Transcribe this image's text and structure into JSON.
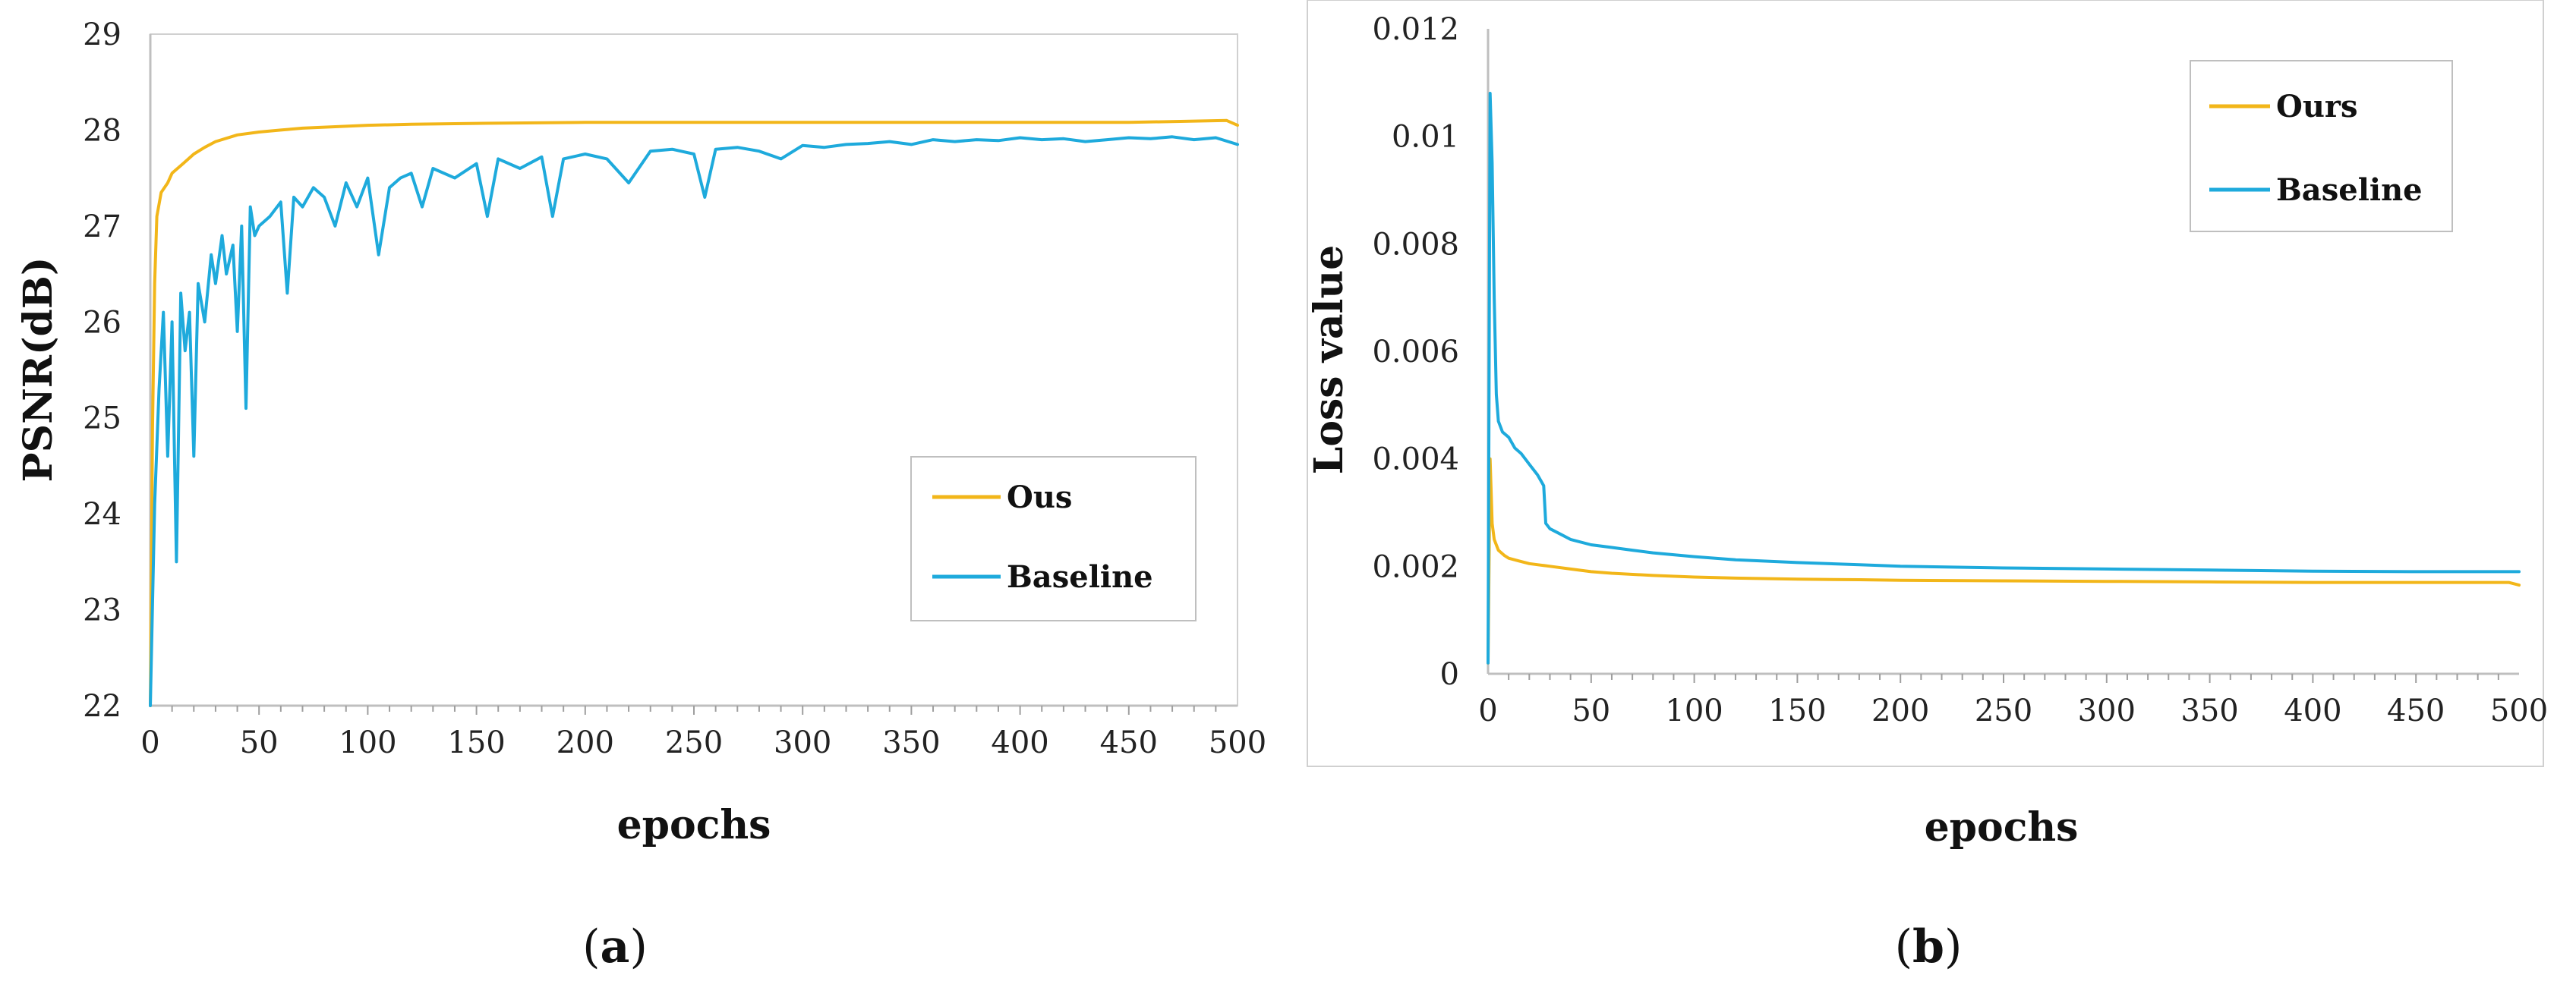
{
  "chart_data": [
    {
      "id": "a",
      "type": "line",
      "panel_label": "a",
      "xlabel": "epochs",
      "ylabel": "PSNR(dB)",
      "xlim": [
        0,
        500
      ],
      "ylim": [
        22,
        29
      ],
      "xticks": [
        0,
        50,
        100,
        150,
        200,
        250,
        300,
        350,
        400,
        450,
        500
      ],
      "yticks": [
        22,
        23,
        24,
        25,
        26,
        27,
        28,
        29
      ],
      "grid": false,
      "legend_position": "center-right",
      "series": [
        {
          "name": "Ous",
          "color": "#F2B619",
          "x": [
            0,
            1,
            2,
            3,
            5,
            8,
            10,
            15,
            20,
            25,
            30,
            40,
            50,
            60,
            70,
            80,
            100,
            120,
            150,
            200,
            250,
            300,
            350,
            400,
            450,
            495,
            500
          ],
          "y": [
            22.0,
            24.9,
            26.4,
            27.1,
            27.35,
            27.45,
            27.55,
            27.65,
            27.75,
            27.82,
            27.88,
            27.95,
            27.98,
            28.0,
            28.02,
            28.03,
            28.05,
            28.06,
            28.07,
            28.08,
            28.08,
            28.08,
            28.08,
            28.08,
            28.08,
            28.1,
            28.05
          ]
        },
        {
          "name": "Baseline",
          "color": "#1EAADC",
          "x": [
            0,
            2,
            4,
            6,
            8,
            10,
            12,
            14,
            16,
            18,
            20,
            22,
            25,
            28,
            30,
            33,
            35,
            38,
            40,
            42,
            44,
            46,
            48,
            50,
            55,
            60,
            63,
            66,
            70,
            75,
            80,
            85,
            90,
            95,
            100,
            105,
            110,
            115,
            120,
            125,
            130,
            140,
            150,
            155,
            160,
            170,
            180,
            185,
            190,
            200,
            210,
            220,
            230,
            240,
            250,
            255,
            260,
            270,
            280,
            290,
            300,
            310,
            320,
            330,
            340,
            350,
            360,
            370,
            380,
            390,
            400,
            410,
            420,
            430,
            440,
            450,
            460,
            470,
            480,
            490,
            500
          ],
          "y": [
            22.0,
            24.1,
            25.3,
            26.1,
            24.6,
            26.0,
            23.5,
            26.3,
            25.7,
            26.1,
            24.6,
            26.4,
            26.0,
            26.7,
            26.4,
            26.9,
            26.5,
            26.8,
            25.9,
            27.0,
            25.1,
            27.2,
            26.9,
            27.0,
            27.1,
            27.25,
            26.3,
            27.3,
            27.2,
            27.4,
            27.3,
            27.0,
            27.45,
            27.2,
            27.5,
            26.7,
            27.4,
            27.5,
            27.55,
            27.2,
            27.6,
            27.5,
            27.65,
            27.1,
            27.7,
            27.6,
            27.72,
            27.1,
            27.7,
            27.75,
            27.7,
            27.45,
            27.78,
            27.8,
            27.75,
            27.3,
            27.8,
            27.82,
            27.78,
            27.7,
            27.84,
            27.82,
            27.85,
            27.86,
            27.88,
            27.85,
            27.9,
            27.88,
            27.9,
            27.89,
            27.92,
            27.9,
            27.91,
            27.88,
            27.9,
            27.92,
            27.91,
            27.93,
            27.9,
            27.92,
            27.85
          ]
        }
      ]
    },
    {
      "id": "b",
      "type": "line",
      "panel_label": "b",
      "xlabel": "epochs",
      "ylabel": "Loss value",
      "xlim": [
        0,
        500
      ],
      "ylim": [
        0,
        0.012
      ],
      "xticks": [
        0,
        50,
        100,
        150,
        200,
        250,
        300,
        350,
        400,
        450,
        500
      ],
      "yticks": [
        0,
        0.002,
        0.004,
        0.006,
        0.008,
        0.01,
        0.012
      ],
      "ytick_labels": [
        "0",
        "0.002",
        "0.004",
        "0.006",
        "0.008",
        "0.01",
        "0.012"
      ],
      "grid": false,
      "legend_position": "top-right",
      "series": [
        {
          "name": "Ours",
          "color": "#F2B619",
          "x": [
            0,
            1,
            2,
            3,
            5,
            8,
            10,
            15,
            20,
            30,
            40,
            50,
            60,
            80,
            100,
            120,
            150,
            180,
            200,
            250,
            300,
            350,
            400,
            450,
            495,
            500
          ],
          "y": [
            0.0002,
            0.004,
            0.0028,
            0.0025,
            0.0023,
            0.0022,
            0.00215,
            0.0021,
            0.00205,
            0.002,
            0.00195,
            0.0019,
            0.00187,
            0.00183,
            0.0018,
            0.00178,
            0.00176,
            0.00175,
            0.00174,
            0.00173,
            0.00172,
            0.00171,
            0.0017,
            0.0017,
            0.0017,
            0.00165
          ]
        },
        {
          "name": "Baseline",
          "color": "#1EAADC",
          "x": [
            0,
            1,
            2,
            3,
            4,
            5,
            7,
            10,
            13,
            16,
            20,
            24,
            27,
            28,
            30,
            35,
            40,
            50,
            60,
            70,
            80,
            100,
            120,
            150,
            180,
            200,
            250,
            300,
            350,
            400,
            450,
            500
          ],
          "y": [
            0.0002,
            0.0108,
            0.0095,
            0.007,
            0.0052,
            0.0047,
            0.0045,
            0.0044,
            0.0042,
            0.0041,
            0.0039,
            0.0037,
            0.0035,
            0.0028,
            0.0027,
            0.0026,
            0.0025,
            0.0024,
            0.00235,
            0.0023,
            0.00225,
            0.00218,
            0.00212,
            0.00207,
            0.00203,
            0.002,
            0.00197,
            0.00195,
            0.00193,
            0.00191,
            0.0019,
            0.0019
          ]
        }
      ]
    }
  ]
}
